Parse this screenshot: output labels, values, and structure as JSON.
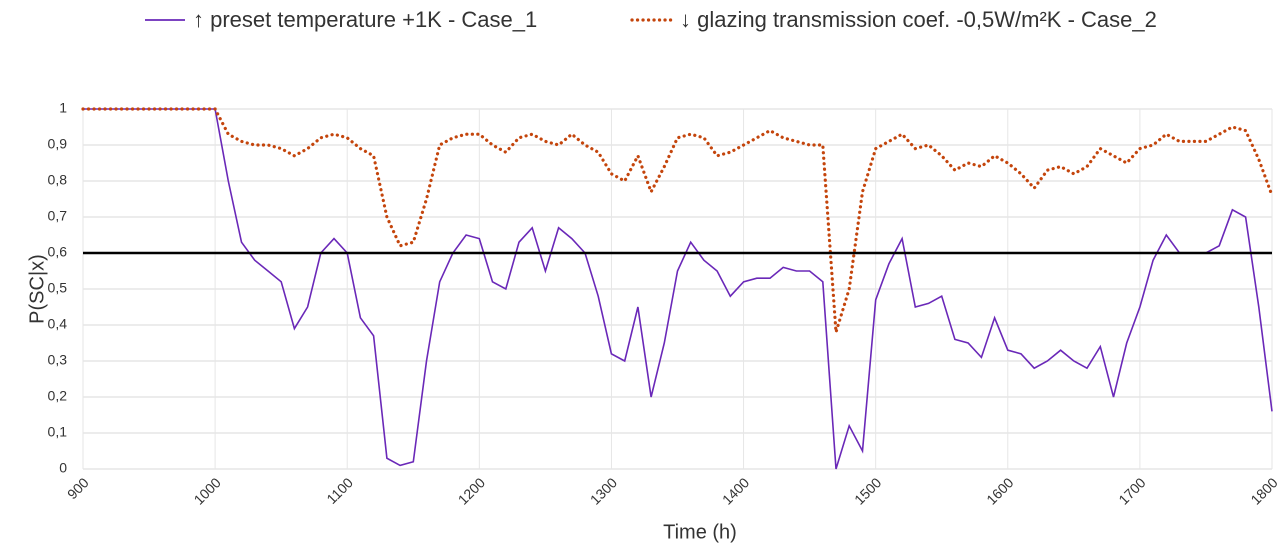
{
  "chart_data": {
    "type": "line",
    "x_label": "Time (h)",
    "y_label": "P(SC|x)",
    "x": [
      900,
      910,
      920,
      930,
      940,
      950,
      960,
      970,
      980,
      990,
      1000,
      1010,
      1020,
      1030,
      1040,
      1050,
      1060,
      1070,
      1080,
      1090,
      1100,
      1110,
      1120,
      1130,
      1140,
      1150,
      1160,
      1170,
      1180,
      1190,
      1200,
      1210,
      1220,
      1230,
      1240,
      1250,
      1260,
      1270,
      1280,
      1290,
      1300,
      1310,
      1320,
      1330,
      1340,
      1350,
      1360,
      1370,
      1380,
      1390,
      1400,
      1410,
      1420,
      1430,
      1440,
      1450,
      1460,
      1470,
      1480,
      1490,
      1500,
      1510,
      1520,
      1530,
      1540,
      1550,
      1560,
      1570,
      1580,
      1590,
      1600,
      1610,
      1620,
      1630,
      1640,
      1650,
      1660,
      1670,
      1680,
      1690,
      1700,
      1710,
      1720,
      1730,
      1740,
      1750,
      1760,
      1770,
      1780,
      1790,
      1800
    ],
    "series": [
      {
        "name": "↑ preset temperature +1K - Case_1",
        "color": "#6a28b8",
        "style": "solid",
        "values": [
          1,
          1,
          1,
          1,
          1,
          1,
          1,
          1,
          1,
          1,
          1,
          0.8,
          0.63,
          0.58,
          0.55,
          0.52,
          0.39,
          0.45,
          0.6,
          0.64,
          0.6,
          0.42,
          0.37,
          0.03,
          0.01,
          0.02,
          0.3,
          0.52,
          0.6,
          0.65,
          0.64,
          0.52,
          0.5,
          0.63,
          0.67,
          0.55,
          0.67,
          0.64,
          0.6,
          0.48,
          0.32,
          0.3,
          0.45,
          0.2,
          0.35,
          0.55,
          0.63,
          0.58,
          0.55,
          0.48,
          0.52,
          0.53,
          0.53,
          0.56,
          0.55,
          0.55,
          0.52,
          0,
          0.12,
          0.05,
          0.47,
          0.57,
          0.64,
          0.45,
          0.46,
          0.48,
          0.36,
          0.35,
          0.31,
          0.42,
          0.33,
          0.32,
          0.28,
          0.3,
          0.33,
          0.3,
          0.28,
          0.34,
          0.2,
          0.35,
          0.45,
          0.58,
          0.65,
          0.6,
          0.6,
          0.6,
          0.62,
          0.72,
          0.7,
          0.45,
          0.16
        ]
      },
      {
        "name": "↓ glazing transmission coef. -0,5W/m²K - Case_2",
        "color": "#c4450c",
        "style": "dotted",
        "values": [
          1,
          1,
          1,
          1,
          1,
          1,
          1,
          1,
          1,
          1,
          1,
          0.93,
          0.91,
          0.9,
          0.9,
          0.89,
          0.87,
          0.89,
          0.92,
          0.93,
          0.92,
          0.89,
          0.87,
          0.7,
          0.62,
          0.63,
          0.75,
          0.9,
          0.92,
          0.93,
          0.93,
          0.9,
          0.88,
          0.92,
          0.93,
          0.91,
          0.9,
          0.93,
          0.9,
          0.88,
          0.82,
          0.8,
          0.87,
          0.77,
          0.84,
          0.92,
          0.93,
          0.92,
          0.87,
          0.88,
          0.9,
          0.92,
          0.94,
          0.92,
          0.91,
          0.9,
          0.9,
          0.38,
          0.5,
          0.77,
          0.89,
          0.91,
          0.93,
          0.89,
          0.9,
          0.87,
          0.83,
          0.85,
          0.84,
          0.87,
          0.85,
          0.82,
          0.78,
          0.83,
          0.84,
          0.82,
          0.84,
          0.89,
          0.87,
          0.85,
          0.89,
          0.9,
          0.93,
          0.91,
          0.91,
          0.91,
          0.93,
          0.95,
          0.94,
          0.86,
          0.76
        ]
      }
    ],
    "hline": 0.6,
    "hline_color": "#000000",
    "xlim": [
      900,
      1800
    ],
    "xticks": [
      900,
      1000,
      1100,
      1200,
      1300,
      1400,
      1500,
      1600,
      1700,
      1800
    ],
    "ylim": [
      0,
      1
    ],
    "yticks": [
      0,
      {
        "value": 0.1,
        "label": "0,1"
      },
      {
        "value": 0.2,
        "label": "0,2"
      },
      {
        "value": 0.3,
        "label": "0,3"
      },
      {
        "value": 0.4,
        "label": "0,4"
      },
      {
        "value": 0.5,
        "label": "0,5"
      },
      {
        "value": 0.6,
        "label": "0,6"
      },
      {
        "value": 0.7,
        "label": "0,7"
      },
      {
        "value": 0.8,
        "label": "0,8"
      },
      {
        "value": 0.9,
        "label": "0,9"
      },
      1
    ],
    "grid": true,
    "legend": "top"
  }
}
